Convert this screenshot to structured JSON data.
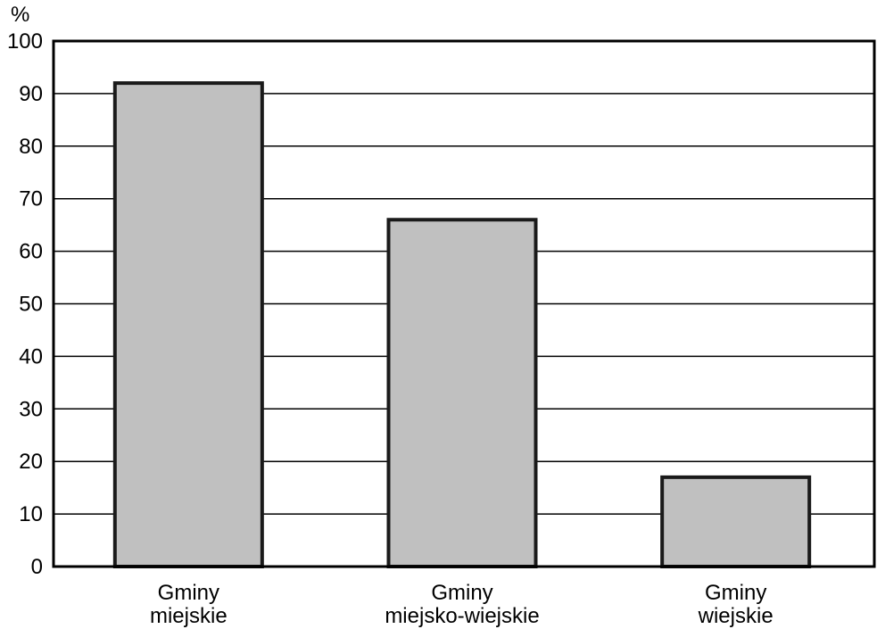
{
  "chart_data": {
    "type": "bar",
    "ylabel": "%",
    "ylim": [
      0,
      100
    ],
    "yticks": [
      "0",
      "10",
      "20",
      "30",
      "40",
      "50",
      "60",
      "70",
      "80",
      "90",
      "100"
    ],
    "categories": [
      [
        "Gminy",
        "miejskie"
      ],
      [
        "Gminy",
        "miejsko-wiejskie"
      ],
      [
        "Gminy",
        "wiejskie"
      ]
    ],
    "values": [
      92,
      66,
      17
    ],
    "grid": true,
    "colors": {
      "bar_fill": "#c0c0c0",
      "bar_stroke": "#1a1a1a",
      "grid": "#000000",
      "axis": "#000000"
    }
  }
}
